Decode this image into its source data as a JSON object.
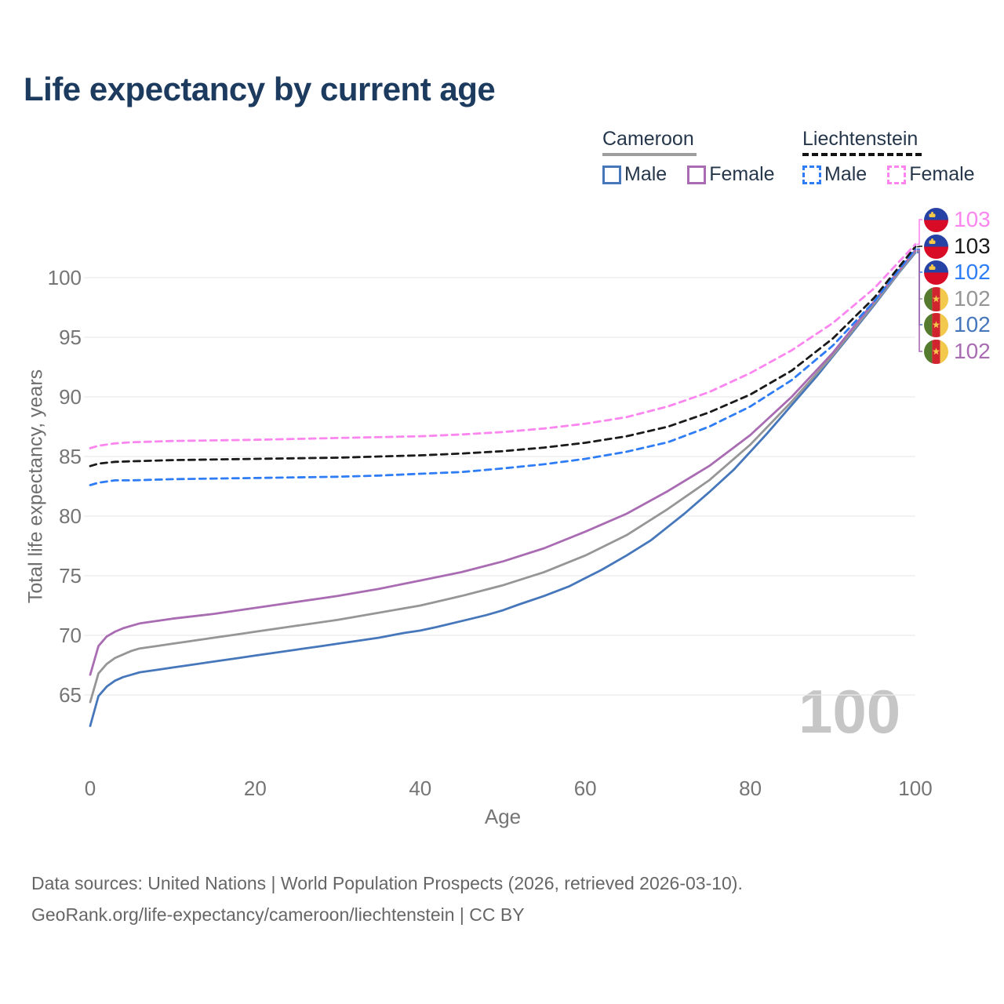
{
  "title": "Life expectancy by current age",
  "legend": {
    "groups": [
      {
        "label": "Cameroon",
        "line_style": "solid",
        "underline_color": "#9e9e9e",
        "items": [
          {
            "label": "Male",
            "color": "#4677bb"
          },
          {
            "label": "Female",
            "color": "#a96cb3"
          }
        ]
      },
      {
        "label": "Liechtenstein",
        "line_style": "dashed",
        "underline_color": "#121212",
        "items": [
          {
            "label": "Male",
            "color": "#2f7df6"
          },
          {
            "label": "Female",
            "color": "#fb86ef"
          }
        ]
      }
    ]
  },
  "chart_data": {
    "type": "line",
    "title": "Life expectancy by current age",
    "xlabel": "Age",
    "ylabel": "Total life expectancy, years",
    "xlim": [
      0,
      100
    ],
    "ylim": [
      62,
      103.5
    ],
    "x_ticks": [
      0,
      20,
      40,
      60,
      80,
      100
    ],
    "y_ticks": [
      65,
      70,
      75,
      80,
      85,
      90,
      95,
      100
    ],
    "grid": "horizontal",
    "grid_color": "#ebebeb",
    "legend_position": "top-right",
    "series": [
      {
        "name": "cameroon_male",
        "country": "Cameroon",
        "sex": "Male",
        "style": "solid",
        "color": "#4677bb",
        "points": [
          [
            0,
            62.4
          ],
          [
            1,
            64.9
          ],
          [
            2,
            65.7
          ],
          [
            3,
            66.2
          ],
          [
            4,
            66.5
          ],
          [
            5,
            66.7
          ],
          [
            6,
            66.9
          ],
          [
            8,
            67.1
          ],
          [
            10,
            67.3
          ],
          [
            12,
            67.5
          ],
          [
            15,
            67.8
          ],
          [
            18,
            68.1
          ],
          [
            20,
            68.3
          ],
          [
            22,
            68.5
          ],
          [
            25,
            68.8
          ],
          [
            28,
            69.1
          ],
          [
            30,
            69.3
          ],
          [
            32,
            69.5
          ],
          [
            35,
            69.8
          ],
          [
            38,
            70.2
          ],
          [
            40,
            70.4
          ],
          [
            42,
            70.7
          ],
          [
            45,
            71.2
          ],
          [
            48,
            71.7
          ],
          [
            50,
            72.1
          ],
          [
            52,
            72.6
          ],
          [
            55,
            73.3
          ],
          [
            58,
            74.1
          ],
          [
            60,
            74.8
          ],
          [
            62,
            75.5
          ],
          [
            65,
            76.7
          ],
          [
            68,
            78.0
          ],
          [
            70,
            79.1
          ],
          [
            72,
            80.2
          ],
          [
            75,
            82.0
          ],
          [
            78,
            83.9
          ],
          [
            80,
            85.4
          ],
          [
            82,
            86.9
          ],
          [
            85,
            89.3
          ],
          [
            88,
            91.7
          ],
          [
            90,
            93.4
          ],
          [
            92,
            95.1
          ],
          [
            95,
            97.7
          ],
          [
            98,
            100.4
          ],
          [
            100,
            102.1
          ]
        ]
      },
      {
        "name": "cameroon_total",
        "country": "Cameroon",
        "sex": "Both",
        "style": "solid",
        "color": "#969696",
        "points": [
          [
            0,
            64.4
          ],
          [
            1,
            66.8
          ],
          [
            2,
            67.6
          ],
          [
            3,
            68.1
          ],
          [
            4,
            68.4
          ],
          [
            5,
            68.7
          ],
          [
            6,
            68.9
          ],
          [
            8,
            69.1
          ],
          [
            10,
            69.3
          ],
          [
            12,
            69.5
          ],
          [
            15,
            69.8
          ],
          [
            18,
            70.1
          ],
          [
            20,
            70.3
          ],
          [
            25,
            70.8
          ],
          [
            30,
            71.3
          ],
          [
            35,
            71.9
          ],
          [
            40,
            72.5
          ],
          [
            45,
            73.3
          ],
          [
            50,
            74.2
          ],
          [
            55,
            75.3
          ],
          [
            60,
            76.7
          ],
          [
            65,
            78.4
          ],
          [
            70,
            80.6
          ],
          [
            75,
            83.0
          ],
          [
            80,
            86.0
          ],
          [
            85,
            89.6
          ],
          [
            90,
            93.5
          ],
          [
            95,
            97.8
          ],
          [
            100,
            102.2
          ]
        ]
      },
      {
        "name": "cameroon_female",
        "country": "Cameroon",
        "sex": "Female",
        "style": "solid",
        "color": "#a96cb3",
        "points": [
          [
            0,
            66.7
          ],
          [
            1,
            69.1
          ],
          [
            2,
            69.9
          ],
          [
            3,
            70.3
          ],
          [
            4,
            70.6
          ],
          [
            5,
            70.8
          ],
          [
            6,
            71.0
          ],
          [
            8,
            71.2
          ],
          [
            10,
            71.4
          ],
          [
            15,
            71.8
          ],
          [
            20,
            72.3
          ],
          [
            25,
            72.8
          ],
          [
            30,
            73.3
          ],
          [
            35,
            73.9
          ],
          [
            40,
            74.6
          ],
          [
            45,
            75.3
          ],
          [
            50,
            76.2
          ],
          [
            55,
            77.3
          ],
          [
            60,
            78.7
          ],
          [
            65,
            80.2
          ],
          [
            70,
            82.1
          ],
          [
            75,
            84.2
          ],
          [
            80,
            86.8
          ],
          [
            85,
            90.0
          ],
          [
            90,
            93.7
          ],
          [
            95,
            98.0
          ],
          [
            100,
            102.3
          ]
        ]
      },
      {
        "name": "liechtenstein_male",
        "country": "Liechtenstein",
        "sex": "Male",
        "style": "dashed",
        "color": "#2f7df6",
        "points": [
          [
            0,
            82.6
          ],
          [
            1,
            82.8
          ],
          [
            3,
            83.0
          ],
          [
            5,
            83.0
          ],
          [
            10,
            83.1
          ],
          [
            15,
            83.15
          ],
          [
            20,
            83.2
          ],
          [
            25,
            83.25
          ],
          [
            30,
            83.3
          ],
          [
            35,
            83.4
          ],
          [
            40,
            83.55
          ],
          [
            45,
            83.7
          ],
          [
            50,
            84.0
          ],
          [
            55,
            84.35
          ],
          [
            60,
            84.8
          ],
          [
            65,
            85.4
          ],
          [
            70,
            86.2
          ],
          [
            75,
            87.5
          ],
          [
            80,
            89.2
          ],
          [
            85,
            91.4
          ],
          [
            90,
            94.3
          ],
          [
            95,
            98.0
          ],
          [
            100,
            102.4
          ]
        ]
      },
      {
        "name": "liechtenstein_total",
        "country": "Liechtenstein",
        "sex": "Both",
        "style": "dashed",
        "color": "#1a1a1a",
        "points": [
          [
            0,
            84.2
          ],
          [
            1,
            84.4
          ],
          [
            3,
            84.55
          ],
          [
            5,
            84.6
          ],
          [
            10,
            84.7
          ],
          [
            20,
            84.8
          ],
          [
            30,
            84.9
          ],
          [
            40,
            85.1
          ],
          [
            45,
            85.25
          ],
          [
            50,
            85.45
          ],
          [
            55,
            85.75
          ],
          [
            60,
            86.15
          ],
          [
            65,
            86.7
          ],
          [
            70,
            87.5
          ],
          [
            75,
            88.7
          ],
          [
            80,
            90.2
          ],
          [
            85,
            92.2
          ],
          [
            90,
            94.9
          ],
          [
            95,
            98.3
          ],
          [
            100,
            102.6
          ]
        ]
      },
      {
        "name": "liechtenstein_female",
        "country": "Liechtenstein",
        "sex": "Female",
        "style": "dashed",
        "color": "#fb86ef",
        "points": [
          [
            0,
            85.7
          ],
          [
            1,
            85.9
          ],
          [
            3,
            86.1
          ],
          [
            5,
            86.2
          ],
          [
            10,
            86.3
          ],
          [
            20,
            86.4
          ],
          [
            30,
            86.55
          ],
          [
            40,
            86.7
          ],
          [
            45,
            86.85
          ],
          [
            50,
            87.05
          ],
          [
            55,
            87.35
          ],
          [
            60,
            87.75
          ],
          [
            65,
            88.3
          ],
          [
            70,
            89.2
          ],
          [
            75,
            90.4
          ],
          [
            80,
            92.0
          ],
          [
            85,
            93.9
          ],
          [
            90,
            96.2
          ],
          [
            95,
            99.1
          ],
          [
            100,
            102.8
          ]
        ]
      }
    ]
  },
  "end_labels": [
    {
      "flag": "liechtenstein",
      "series": "liechtenstein_female",
      "value": "103",
      "color": "#fb86ef"
    },
    {
      "flag": "liechtenstein",
      "series": "liechtenstein_total",
      "value": "103",
      "color": "#1a1a1a"
    },
    {
      "flag": "liechtenstein",
      "series": "liechtenstein_male",
      "value": "102",
      "color": "#2f7df6"
    },
    {
      "flag": "cameroon",
      "series": "cameroon_total",
      "value": "102",
      "color": "#969696"
    },
    {
      "flag": "cameroon",
      "series": "cameroon_male",
      "value": "102",
      "color": "#4677bb"
    },
    {
      "flag": "cameroon",
      "series": "cameroon_female",
      "value": "102",
      "color": "#a96cb3"
    }
  ],
  "watermark": "100",
  "axis": {
    "x_title": "Age",
    "y_title": "Total life expectancy, years"
  },
  "footer": {
    "line1": "Data sources: United Nations | World Population Prospects (2026, retrieved 2026-03-10).",
    "line2": "GeoRank.org/life-expectancy/cameroon/liechtenstein | CC BY"
  },
  "colors": {
    "title": "#1c3b5e",
    "axis_text": "#757575",
    "grid": "#ebebeb",
    "watermark": "#c6c6c6",
    "footer_text": "#666666"
  }
}
